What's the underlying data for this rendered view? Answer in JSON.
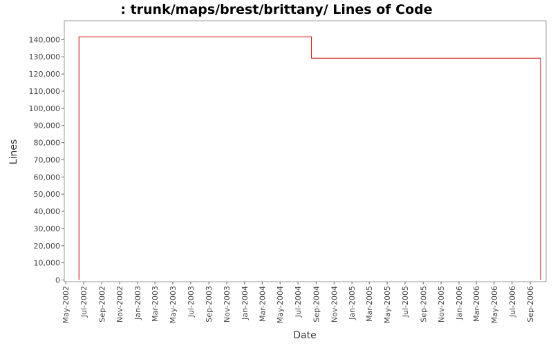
{
  "chart_data": {
    "type": "step-line",
    "title": ": trunk/maps/brest/brittany/ Lines of Code",
    "x_label": "Date",
    "y_label": "Lines",
    "x": [
      "2002-06-15",
      "2002-06-15",
      "2004-08-16",
      "2004-08-16",
      "2006-10-06",
      "2006-10-06"
    ],
    "series": [
      {
        "name": "Lines",
        "color": "#cc0000",
        "values": [
          0,
          141600,
          141600,
          129200,
          129200,
          0
        ]
      }
    ],
    "xlim": [
      "2002-04-26",
      "2006-10-25"
    ],
    "xticks": [
      {
        "value": "2002-05-01",
        "label": "May-2002"
      },
      {
        "value": "2002-07-01",
        "label": "Jul-2002"
      },
      {
        "value": "2002-09-01",
        "label": "Sep-2002"
      },
      {
        "value": "2002-11-01",
        "label": "Nov-2002"
      },
      {
        "value": "2003-01-01",
        "label": "Jan-2003"
      },
      {
        "value": "2003-03-01",
        "label": "Mar-2003"
      },
      {
        "value": "2003-05-01",
        "label": "May-2003"
      },
      {
        "value": "2003-07-01",
        "label": "Jul-2003"
      },
      {
        "value": "2003-09-01",
        "label": "Sep-2003"
      },
      {
        "value": "2003-11-01",
        "label": "Nov-2003"
      },
      {
        "value": "2004-01-01",
        "label": "Jan-2004"
      },
      {
        "value": "2004-03-01",
        "label": "Mar-2004"
      },
      {
        "value": "2004-05-01",
        "label": "May-2004"
      },
      {
        "value": "2004-07-01",
        "label": "Jul-2004"
      },
      {
        "value": "2004-09-01",
        "label": "Sep-2004"
      },
      {
        "value": "2004-11-01",
        "label": "Nov-2004"
      },
      {
        "value": "2005-01-01",
        "label": "Jan-2005"
      },
      {
        "value": "2005-03-01",
        "label": "Mar-2005"
      },
      {
        "value": "2005-05-01",
        "label": "May-2005"
      },
      {
        "value": "2005-07-01",
        "label": "Jul-2005"
      },
      {
        "value": "2005-09-01",
        "label": "Sep-2005"
      },
      {
        "value": "2005-11-01",
        "label": "Nov-2005"
      },
      {
        "value": "2006-01-01",
        "label": "Jan-2006"
      },
      {
        "value": "2006-03-01",
        "label": "Mar-2006"
      },
      {
        "value": "2006-05-01",
        "label": "May-2006"
      },
      {
        "value": "2006-07-01",
        "label": "Jul-2006"
      },
      {
        "value": "2006-09-01",
        "label": "Sep-2006"
      }
    ],
    "ylim": [
      -1000,
      151000
    ],
    "yticks": [
      0,
      {
        "value": 10000,
        "label": "10,000"
      },
      {
        "value": 20000,
        "label": "20,000"
      },
      {
        "value": 30000,
        "label": "30,000"
      },
      {
        "value": 40000,
        "label": "40,000"
      },
      {
        "value": 50000,
        "label": "50,000"
      },
      {
        "value": 60000,
        "label": "60,000"
      },
      {
        "value": 70000,
        "label": "70,000"
      },
      {
        "value": 80000,
        "label": "80,000"
      },
      {
        "value": 90000,
        "label": "90,000"
      },
      {
        "value": 100000,
        "label": "100,000"
      },
      {
        "value": 110000,
        "label": "110,000"
      },
      {
        "value": 120000,
        "label": "120,000"
      },
      {
        "value": 130000,
        "label": "130,000"
      },
      {
        "value": 140000,
        "label": "140,000"
      }
    ]
  }
}
